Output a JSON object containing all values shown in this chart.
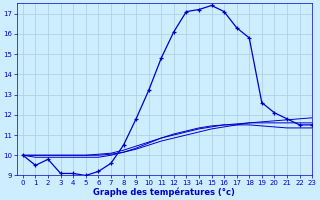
{
  "xlabel": "Graphe des températures (°c)",
  "bg_color": "#cceeff",
  "line_color": "#0000cc",
  "grid_color": "#aacce0",
  "x_hours": [
    0,
    1,
    2,
    3,
    4,
    5,
    6,
    7,
    8,
    9,
    10,
    11,
    12,
    13,
    14,
    15,
    16,
    17,
    18,
    19,
    20,
    21,
    22,
    23
  ],
  "temp_main": [
    10.0,
    9.5,
    9.8,
    9.1,
    9.1,
    9.0,
    9.2,
    9.6,
    10.5,
    11.8,
    13.2,
    14.8,
    16.1,
    17.1,
    17.2,
    17.4,
    17.1,
    16.3,
    15.8,
    12.6,
    12.1,
    11.8,
    11.5,
    11.5
  ],
  "temp_line2": [
    10.0,
    9.9,
    9.9,
    9.9,
    9.9,
    9.9,
    9.9,
    10.0,
    10.15,
    10.3,
    10.5,
    10.7,
    10.85,
    11.0,
    11.15,
    11.3,
    11.4,
    11.5,
    11.6,
    11.65,
    11.7,
    11.75,
    11.8,
    11.85
  ],
  "temp_line3": [
    10.0,
    10.0,
    10.0,
    10.0,
    10.0,
    10.0,
    10.05,
    10.1,
    10.25,
    10.45,
    10.65,
    10.85,
    11.0,
    11.15,
    11.3,
    11.4,
    11.5,
    11.55,
    11.6,
    11.6,
    11.6,
    11.6,
    11.6,
    11.6
  ],
  "temp_line4": [
    10.0,
    10.0,
    10.0,
    10.0,
    10.0,
    10.0,
    10.0,
    10.05,
    10.15,
    10.35,
    10.6,
    10.85,
    11.05,
    11.2,
    11.35,
    11.45,
    11.5,
    11.5,
    11.5,
    11.45,
    11.4,
    11.35,
    11.35,
    11.35
  ],
  "ylim": [
    9,
    17.5
  ],
  "xlim": [
    -0.5,
    23
  ],
  "yticks": [
    9,
    10,
    11,
    12,
    13,
    14,
    15,
    16,
    17
  ],
  "xticks": [
    0,
    1,
    2,
    3,
    4,
    5,
    6,
    7,
    8,
    9,
    10,
    11,
    12,
    13,
    14,
    15,
    16,
    17,
    18,
    19,
    20,
    21,
    22,
    23
  ]
}
